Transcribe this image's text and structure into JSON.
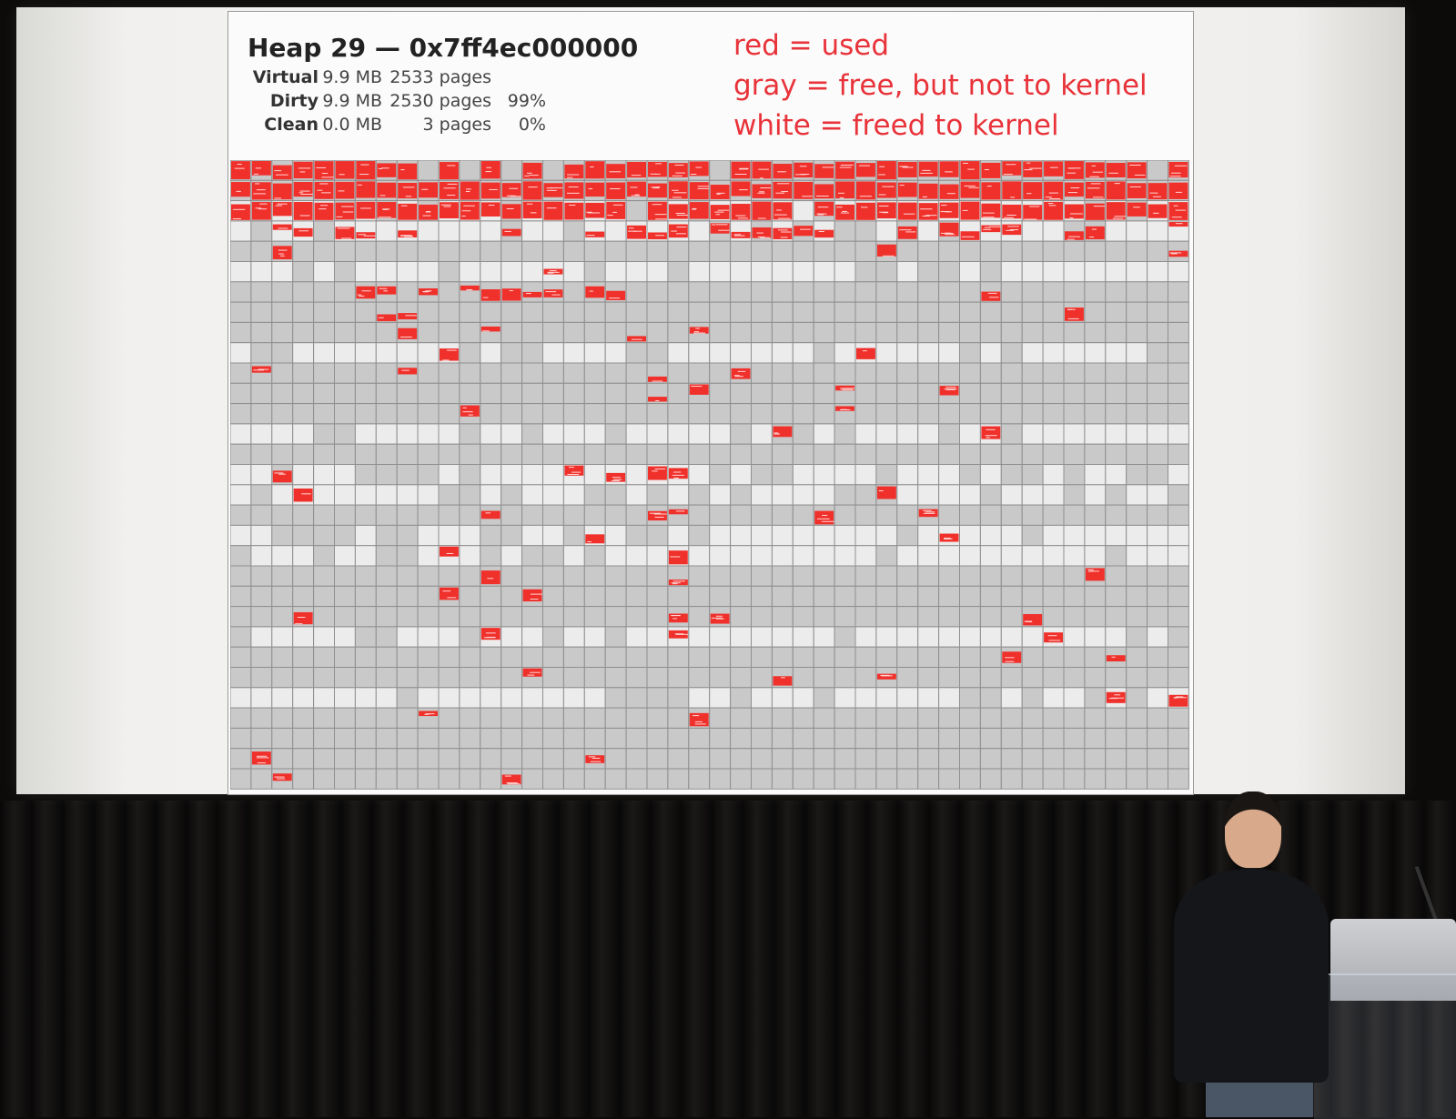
{
  "slide": {
    "title": "Heap 29 — 0x7ff4ec000000",
    "stats": [
      {
        "label": "Virtual",
        "mb": "9.9 MB",
        "pages": "2533 pages",
        "percent": ""
      },
      {
        "label": "Dirty",
        "mb": "9.9 MB",
        "pages": "2530 pages",
        "percent": "99%"
      },
      {
        "label": "Clean",
        "mb": "0.0 MB",
        "pages": "3 pages",
        "percent": "0%"
      }
    ],
    "legend": [
      "red = used",
      "gray = free, but not to kernel",
      "white = freed to kernel"
    ]
  },
  "colors": {
    "used": "#f0302b",
    "free_not_to_kernel": "#c9c9c9",
    "freed_to_kernel": "#ececec",
    "cell_border": "#8f8f8f",
    "legend_text": "#e8333a"
  }
}
